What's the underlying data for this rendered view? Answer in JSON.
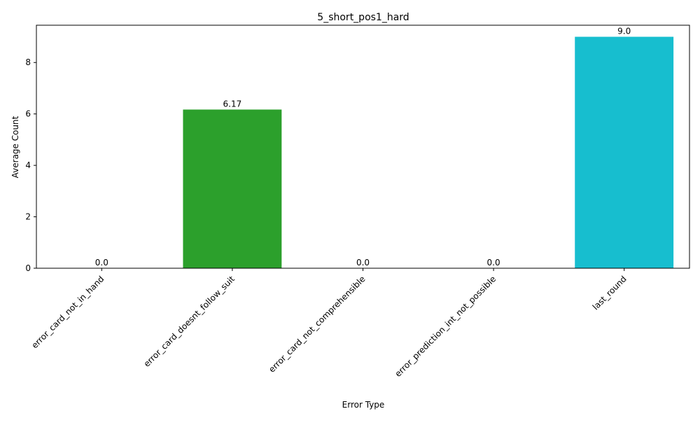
{
  "chart_data": {
    "type": "bar",
    "title": "5_short_pos1_hard",
    "xlabel": "Error Type",
    "ylabel": "Average Count",
    "categories": [
      "error_card_not_in_hand",
      "error_card_doesnt_follow_suit",
      "error_card_not_comprehensible",
      "error_prediction_int_not_possible",
      "last_round"
    ],
    "values": [
      0.0,
      6.17,
      0.0,
      0.0,
      9.0
    ],
    "value_labels": [
      "0.0",
      "6.17",
      "0.0",
      "0.0",
      "9.0"
    ],
    "colors": [
      "#1f77b4",
      "#2ca02c",
      "#8c564b",
      "#7f7f7f",
      "#17becf"
    ],
    "ylim": [
      0,
      9.45
    ],
    "yticks": [
      0,
      2,
      4,
      6,
      8
    ],
    "grid": false,
    "legend": "none"
  }
}
